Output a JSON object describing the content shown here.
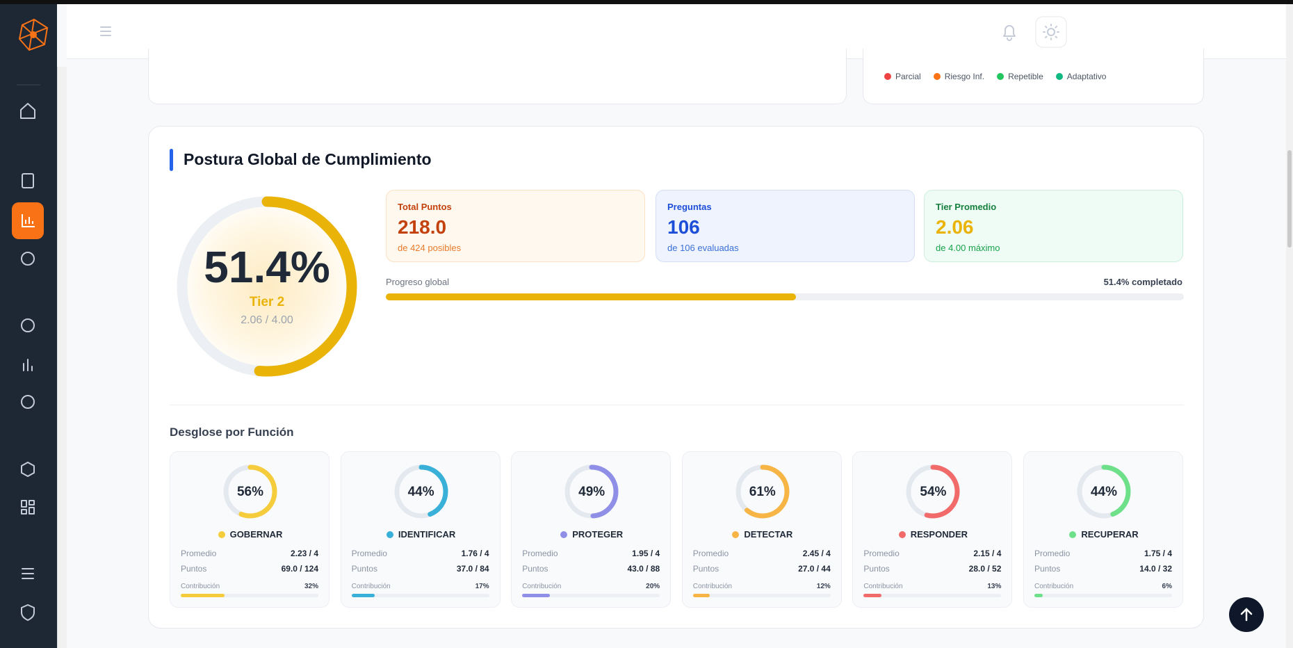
{
  "top_legend": [
    {
      "name": "Parcial",
      "color": "#ef4444"
    },
    {
      "name": "Riesgo Inf.",
      "color": "#f97316"
    },
    {
      "name": "Repetible",
      "color": "#22c55e"
    },
    {
      "name": "Adaptativo",
      "color": "#10b981"
    }
  ],
  "section": {
    "title": "Postura Global de Cumplimiento",
    "score": 51.4,
    "score_label": "51.4%",
    "tier": "Tier 2",
    "tier_detail": "2.06 / 4.00",
    "stats": [
      {
        "label": "Total Puntos",
        "value": "218.0",
        "detail": "de 424 posibles"
      },
      {
        "label": "Preguntas",
        "value": "106",
        "detail": "de 106 evaluadas"
      },
      {
        "label": "Tier Promedio",
        "value": "2.06",
        "detail": "de 4.00 máximo"
      }
    ],
    "progress": {
      "label": "Progreso global",
      "value_label": "51.4% completado"
    },
    "breakdown_title": "Desglose por Función",
    "functions": [
      {
        "name": "GOBERNAR",
        "color": "#f5cc3b",
        "percent": 56,
        "percent_label": "56%",
        "avg_label": "Promedio",
        "avg": "2.23 / 4",
        "points_label": "Puntos",
        "points": "69.0 / 124",
        "contribution_label": "Contribución",
        "contribution": 32,
        "contribution_value_label": "32%"
      },
      {
        "name": "IDENTIFICAR",
        "color": "#38b0d8",
        "percent": 44,
        "percent_label": "44%",
        "avg_label": "Promedio",
        "avg": "1.76 / 4",
        "points_label": "Puntos",
        "points": "37.0 / 84",
        "contribution_label": "Contribución",
        "contribution": 17,
        "contribution_value_label": "17%"
      },
      {
        "name": "PROTEGER",
        "color": "#8f8fe8",
        "percent": 49,
        "percent_label": "49%",
        "avg_label": "Promedio",
        "avg": "1.95 / 4",
        "points_label": "Puntos",
        "points": "43.0 / 88",
        "contribution_label": "Contribución",
        "contribution": 20,
        "contribution_value_label": "20%"
      },
      {
        "name": "DETECTAR",
        "color": "#f6b545",
        "percent": 61,
        "percent_label": "61%",
        "avg_label": "Promedio",
        "avg": "2.45 / 4",
        "points_label": "Puntos",
        "points": "27.0 / 44",
        "contribution_label": "Contribución",
        "contribution": 12,
        "contribution_value_label": "12%"
      },
      {
        "name": "RESPONDER",
        "color": "#f26b6b",
        "percent": 54,
        "percent_label": "54%",
        "avg_label": "Promedio",
        "avg": "2.15 / 4",
        "points_label": "Puntos",
        "points": "28.0 / 52",
        "contribution_label": "Contribución",
        "contribution": 13,
        "contribution_value_label": "13%"
      },
      {
        "name": "RECUPERAR",
        "color": "#6ee08a",
        "percent": 44,
        "percent_label": "44%",
        "avg_label": "Promedio",
        "avg": "1.75 / 4",
        "points_label": "Puntos",
        "points": "14.0 / 32",
        "contribution_label": "Contribución",
        "contribution": 6,
        "contribution_value_label": "6%"
      }
    ]
  }
}
